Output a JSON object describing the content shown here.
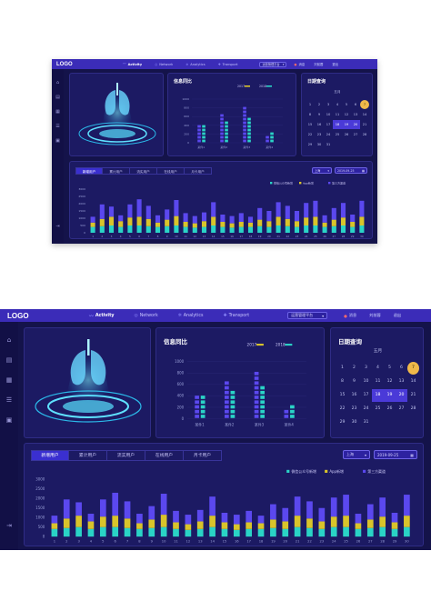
{
  "logo": "LOGO",
  "nav": [
    {
      "label": "Activity",
      "icon": "activity-icon",
      "active": true
    },
    {
      "label": "Network",
      "icon": "network-icon",
      "active": false
    },
    {
      "label": "Analytics",
      "icon": "analytics-icon",
      "active": false
    },
    {
      "label": "Transport",
      "icon": "transport-icon",
      "active": false
    }
  ],
  "header": {
    "system_select": "运营管理平台",
    "notify_label": "消息",
    "user_label": "刘前蓉",
    "logout_label": "退出"
  },
  "info_panel": {
    "title": "信息同比",
    "legend": [
      "2017",
      "2018"
    ],
    "yticks": [
      "1000",
      "800",
      "600",
      "400",
      "200",
      "0"
    ],
    "categories": [
      "某件1",
      "某件2",
      "某件3",
      "某件4"
    ]
  },
  "calendar": {
    "title": "日期查询",
    "month": "五月",
    "weeks": [
      [
        "1",
        "2",
        "3",
        "4",
        "5",
        "6",
        "7"
      ],
      [
        "8",
        "9",
        "10",
        "11",
        "12",
        "13",
        "14"
      ],
      [
        "15",
        "16",
        "17",
        "18",
        "19",
        "20",
        "21"
      ],
      [
        "22",
        "23",
        "24",
        "25",
        "26",
        "27",
        "28"
      ],
      [
        "29",
        "30",
        "31",
        "",
        "",
        "",
        ""
      ]
    ],
    "today": "7",
    "highlighted": [
      "18",
      "19",
      "20"
    ]
  },
  "users_panel": {
    "tabs": [
      "新增用户",
      "累计用户",
      "流实用户",
      "在线用户",
      "月卡用户"
    ],
    "active_tab": 0,
    "region_select": "上海",
    "date_select": "2019-09-25",
    "legend": [
      "微信公众号新增",
      "App新增",
      "第三方渠道"
    ],
    "yticks": [
      "3000",
      "2500",
      "2000",
      "1500",
      "1000",
      "500",
      "0"
    ]
  },
  "colors": {
    "teal": "#2ad3c6",
    "yellow": "#d9c42b",
    "purple": "#5b48ef",
    "accent": "#3b2cb8"
  },
  "chart_data": [
    {
      "type": "bar",
      "title": "信息同比",
      "categories": [
        "某件1",
        "某件2",
        "某件3",
        "某件4"
      ],
      "series": [
        {
          "name": "2017",
          "values": [
            420,
            630,
            800,
            150
          ]
        },
        {
          "name": "2018",
          "values": [
            380,
            500,
            620,
            240
          ]
        }
      ],
      "ylim": [
        0,
        1000
      ]
    },
    {
      "type": "bar",
      "title": "",
      "categories": [
        "1",
        "2",
        "3",
        "4",
        "5",
        "6",
        "7",
        "8",
        "9",
        "10",
        "11",
        "12",
        "13",
        "14",
        "15",
        "16",
        "17",
        "18",
        "19",
        "20",
        "21",
        "22",
        "23",
        "24",
        "25",
        "26",
        "27",
        "28",
        "29",
        "30"
      ],
      "series": [
        {
          "name": "微信公众号新增",
          "values": [
            400,
            450,
            500,
            400,
            500,
            500,
            450,
            400,
            450,
            500,
            400,
            350,
            400,
            500,
            400,
            350,
            400,
            400,
            450,
            400,
            500,
            450,
            400,
            500,
            500,
            400,
            450,
            500,
            400,
            500
          ]
        },
        {
          "name": "App新增",
          "values": [
            300,
            500,
            600,
            400,
            550,
            600,
            500,
            300,
            450,
            650,
            350,
            300,
            400,
            600,
            350,
            300,
            350,
            300,
            450,
            400,
            600,
            500,
            400,
            550,
            600,
            300,
            450,
            550,
            350,
            600
          ]
        },
        {
          "name": "第三方渠道",
          "values": [
            400,
            1000,
            700,
            400,
            900,
            1200,
            900,
            500,
            700,
            1100,
            600,
            500,
            600,
            1000,
            500,
            500,
            600,
            400,
            800,
            700,
            1000,
            900,
            700,
            1000,
            1100,
            500,
            800,
            1000,
            500,
            1100
          ]
        }
      ],
      "ylim": [
        0,
        3000
      ]
    }
  ]
}
